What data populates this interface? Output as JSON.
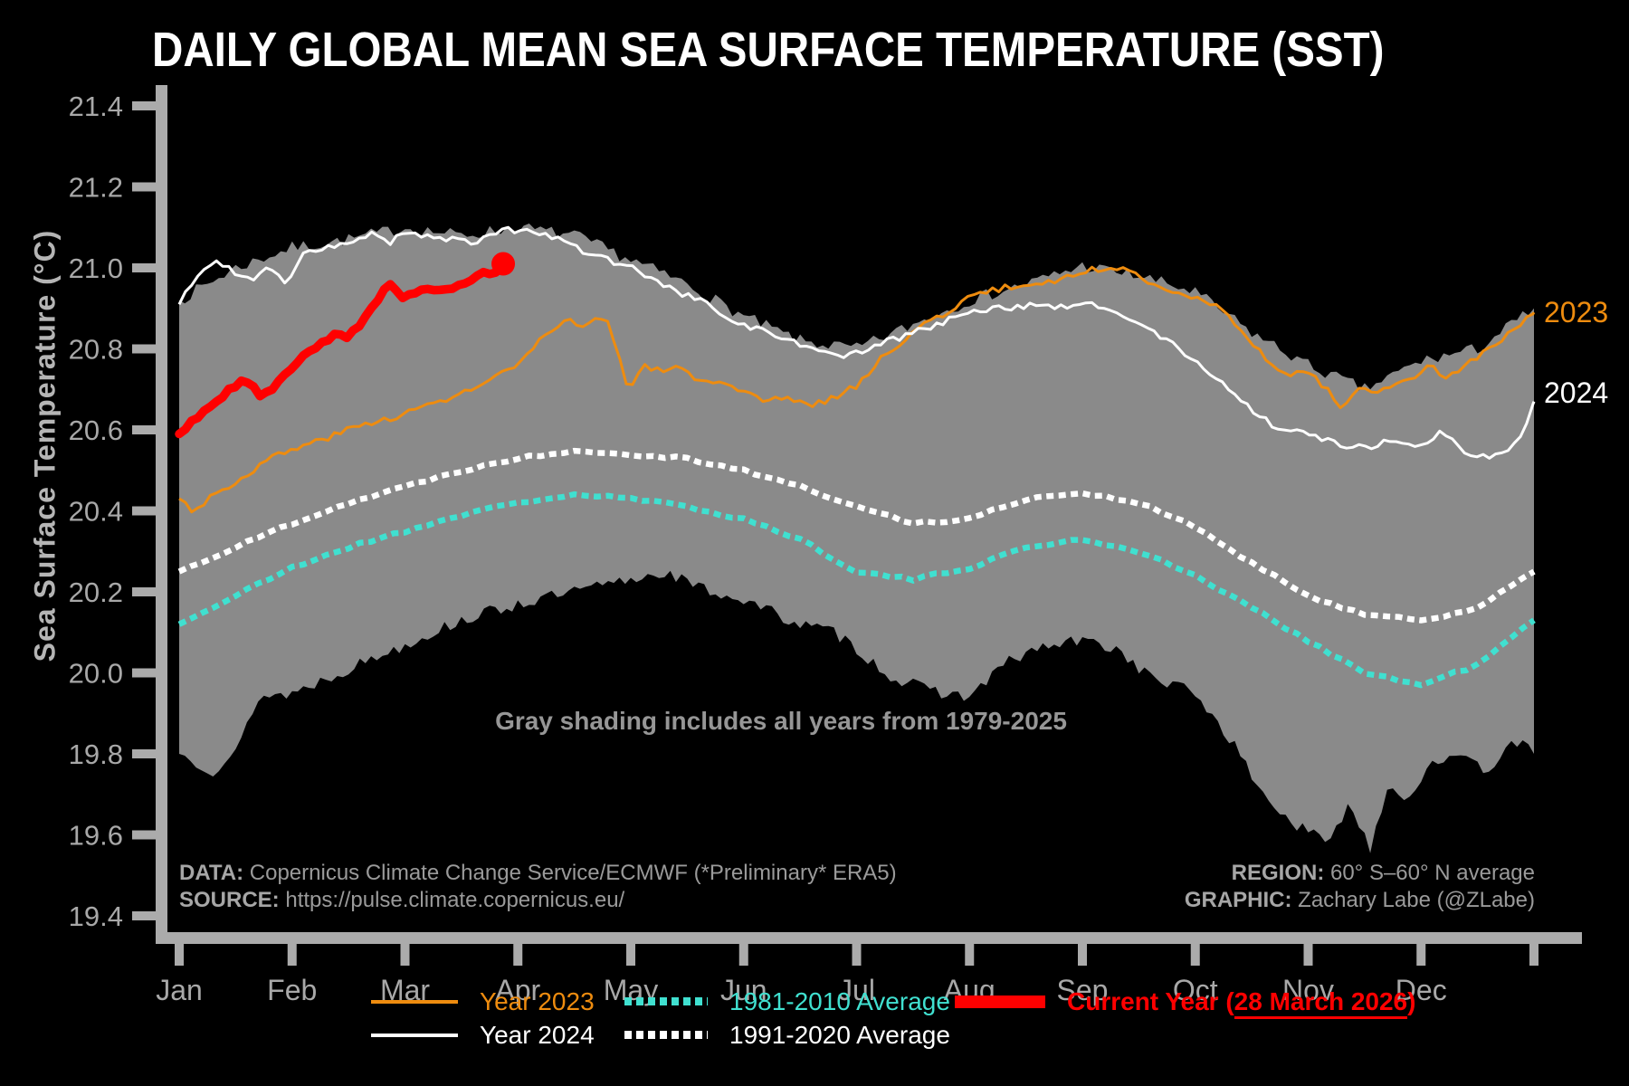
{
  "title": "DAILY GLOBAL MEAN SEA SURFACE TEMPERATURE (SST)",
  "annotation": "Gray shading includes all years from 1979-2025",
  "edge_labels": {
    "y2023": "2023",
    "y2024": "2024"
  },
  "credits": {
    "data_label": "DATA:",
    "data_value": "Copernicus Climate Change Service/ECMWF (*Preliminary* ERA5)",
    "source_label": "SOURCE:",
    "source_value": "https://pulse.climate.copernicus.eu/",
    "region_label": "REGION:",
    "region_value": "60° S–60° N average",
    "graphic_label": "GRAPHIC:",
    "graphic_value": "Zachary Labe (@ZLabe)"
  },
  "legend": {
    "year2023": "Year 2023",
    "year2024": "Year 2024",
    "avg1981": "1981-2010 Average",
    "avg1991": "1991-2020 Average",
    "current_prefix": "Current Year (",
    "current_underline": "28 March 2026",
    "current_suffix": ")"
  },
  "colors": {
    "background": "#000000",
    "band_gray": "#8a8a8a",
    "orange": "#EE8C0F",
    "teal": "#40E0D0",
    "red": "#FF0000",
    "white": "#FFFFFF",
    "axis_gray": "#ABABAB",
    "annotation_gray": "#969696",
    "text_gray": "#9A9A9A"
  },
  "chart_data": {
    "type": "line",
    "ylabel": "Sea Surface Temperature (°C)",
    "ylim": [
      19.4,
      21.4
    ],
    "y_ticks": [
      "21.4",
      "21.2",
      "21.0",
      "20.8",
      "20.6",
      "20.4",
      "20.2",
      "20.0",
      "19.8",
      "19.6",
      "19.4"
    ],
    "x_unit": "months 0=Jan1 .. 12=Dec31",
    "months": [
      "Jan",
      "Feb",
      "Mar",
      "Apr",
      "May",
      "Jun",
      "Jul",
      "Aug",
      "Sep",
      "Oct",
      "Nov",
      "Dec"
    ],
    "band": {
      "label": "All years 1979-2025 envelope (gray shading)",
      "upper": {
        "step": 0.5,
        "values": [
          20.92,
          21.0,
          21.05,
          21.07,
          21.1,
          21.08,
          21.1,
          21.08,
          21.02,
          20.96,
          20.88,
          20.82,
          20.8,
          20.86,
          20.92,
          20.96,
          21.005,
          20.98,
          20.94,
          20.84,
          20.76,
          20.7,
          20.77,
          20.8,
          20.9
        ]
      },
      "lower": {
        "points": [
          [
            0,
            19.8
          ],
          [
            0.3,
            19.76
          ],
          [
            0.5,
            19.8
          ],
          [
            0.7,
            19.94
          ],
          [
            1,
            19.95
          ],
          [
            1.5,
            20.01
          ],
          [
            2,
            20.07
          ],
          [
            2.5,
            20.13
          ],
          [
            3,
            20.17
          ],
          [
            3.5,
            20.2
          ],
          [
            4,
            20.23
          ],
          [
            4.3,
            20.25
          ],
          [
            4.6,
            20.21
          ],
          [
            5,
            20.18
          ],
          [
            5.5,
            20.12
          ],
          [
            5.8,
            20.1
          ],
          [
            6,
            20.06
          ],
          [
            6.3,
            19.99
          ],
          [
            6.6,
            19.96
          ],
          [
            7,
            19.94
          ],
          [
            7.3,
            20.02
          ],
          [
            7.6,
            20.06
          ],
          [
            8,
            20.08
          ],
          [
            8.3,
            20.06
          ],
          [
            8.6,
            19.99
          ],
          [
            9,
            19.95
          ],
          [
            9.3,
            19.84
          ],
          [
            9.6,
            19.7
          ],
          [
            9.9,
            19.62
          ],
          [
            10.2,
            19.58
          ],
          [
            10.35,
            19.68
          ],
          [
            10.55,
            19.57
          ],
          [
            10.7,
            19.72
          ],
          [
            10.9,
            19.69
          ],
          [
            11.1,
            19.79
          ],
          [
            11.4,
            19.78
          ],
          [
            11.6,
            19.76
          ],
          [
            11.8,
            19.84
          ],
          [
            12,
            19.8
          ]
        ]
      }
    },
    "series": [
      {
        "id": "avg-1981-2010",
        "name": "1981-2010 Average",
        "group": "line-1981-2010-avg",
        "color_key": "teal",
        "width": 6.5,
        "dash": "8 5.5",
        "jitter": 0.004,
        "seed": 21,
        "step": 0.5,
        "values": [
          20.12,
          20.19,
          20.26,
          20.31,
          20.35,
          20.39,
          20.42,
          20.44,
          20.43,
          20.41,
          20.38,
          20.33,
          20.25,
          20.23,
          20.26,
          20.31,
          20.33,
          20.3,
          20.24,
          20.16,
          20.08,
          20.0,
          19.97,
          20.02,
          20.13
        ]
      },
      {
        "id": "avg-1991-2020",
        "name": "1991-2020 Average",
        "group": "line-1991-2020-avg",
        "color_key": "white",
        "width": 6.5,
        "dash": "8 5.5",
        "jitter": 0.004,
        "seed": 22,
        "step": 0.5,
        "values": [
          20.25,
          20.31,
          20.37,
          20.42,
          20.46,
          20.5,
          20.53,
          20.55,
          20.54,
          20.53,
          20.5,
          20.46,
          20.41,
          20.37,
          20.38,
          20.43,
          20.445,
          20.42,
          20.36,
          20.27,
          20.19,
          20.145,
          20.13,
          20.16,
          20.25
        ]
      },
      {
        "id": "year-2023",
        "name": "Year 2023",
        "group": "line-2023",
        "color_key": "orange",
        "width": 3,
        "jitter": 0.008,
        "seed": 3,
        "points": [
          [
            0,
            20.43
          ],
          [
            0.13,
            20.4
          ],
          [
            0.3,
            20.44
          ],
          [
            0.5,
            20.47
          ],
          [
            0.8,
            20.53
          ],
          [
            1,
            20.55
          ],
          [
            1.3,
            20.58
          ],
          [
            1.6,
            20.61
          ],
          [
            2,
            20.64
          ],
          [
            2.3,
            20.67
          ],
          [
            2.6,
            20.7
          ],
          [
            3,
            20.76
          ],
          [
            3.2,
            20.82
          ],
          [
            3.45,
            20.87
          ],
          [
            3.6,
            20.86
          ],
          [
            3.78,
            20.88
          ],
          [
            3.9,
            20.78
          ],
          [
            3.98,
            20.69
          ],
          [
            4.1,
            20.76
          ],
          [
            4.3,
            20.74
          ],
          [
            4.45,
            20.76
          ],
          [
            4.6,
            20.72
          ],
          [
            4.8,
            20.71
          ],
          [
            5,
            20.69
          ],
          [
            5.2,
            20.67
          ],
          [
            5.4,
            20.68
          ],
          [
            5.6,
            20.66
          ],
          [
            5.8,
            20.68
          ],
          [
            6,
            20.71
          ],
          [
            6.2,
            20.77
          ],
          [
            6.4,
            20.82
          ],
          [
            6.6,
            20.86
          ],
          [
            6.8,
            20.89
          ],
          [
            7,
            20.93
          ],
          [
            7.3,
            20.95
          ],
          [
            7.6,
            20.96
          ],
          [
            7.9,
            20.98
          ],
          [
            8.1,
            20.995
          ],
          [
            8.27,
            21.005
          ],
          [
            8.45,
            20.985
          ],
          [
            8.65,
            20.96
          ],
          [
            8.85,
            20.94
          ],
          [
            9,
            20.93
          ],
          [
            9.2,
            20.9
          ],
          [
            9.4,
            20.85
          ],
          [
            9.55,
            20.8
          ],
          [
            9.7,
            20.76
          ],
          [
            9.8,
            20.73
          ],
          [
            9.95,
            20.75
          ],
          [
            10.1,
            20.72
          ],
          [
            10.28,
            20.66
          ],
          [
            10.45,
            20.7
          ],
          [
            10.6,
            20.69
          ],
          [
            10.8,
            20.71
          ],
          [
            11,
            20.74
          ],
          [
            11.1,
            20.76
          ],
          [
            11.2,
            20.73
          ],
          [
            11.35,
            20.75
          ],
          [
            11.5,
            20.78
          ],
          [
            11.7,
            20.82
          ],
          [
            11.85,
            20.85
          ],
          [
            12,
            20.89
          ]
        ]
      },
      {
        "id": "year-2024",
        "name": "Year 2024",
        "group": "line-2024",
        "color_key": "white",
        "width": 3,
        "jitter": 0.008,
        "seed": 4,
        "points": [
          [
            0,
            20.91
          ],
          [
            0.2,
            21.0
          ],
          [
            0.35,
            21.02
          ],
          [
            0.5,
            20.98
          ],
          [
            0.65,
            20.97
          ],
          [
            0.8,
            21.0
          ],
          [
            0.95,
            20.96
          ],
          [
            1.1,
            21.03
          ],
          [
            1.3,
            21.05
          ],
          [
            1.5,
            21.06
          ],
          [
            1.7,
            21.09
          ],
          [
            1.85,
            21.06
          ],
          [
            2,
            21.09
          ],
          [
            2.2,
            21.08
          ],
          [
            2.4,
            21.07
          ],
          [
            2.6,
            21.06
          ],
          [
            2.8,
            21.09
          ],
          [
            3,
            21.095
          ],
          [
            3.2,
            21.08
          ],
          [
            3.4,
            21.07
          ],
          [
            3.6,
            21.04
          ],
          [
            3.8,
            21.02
          ],
          [
            4,
            21.0
          ],
          [
            4.2,
            20.97
          ],
          [
            4.4,
            20.94
          ],
          [
            4.6,
            20.92
          ],
          [
            4.8,
            20.89
          ],
          [
            5,
            20.86
          ],
          [
            5.2,
            20.84
          ],
          [
            5.4,
            20.82
          ],
          [
            5.6,
            20.8
          ],
          [
            5.8,
            20.78
          ],
          [
            6,
            20.79
          ],
          [
            6.2,
            20.81
          ],
          [
            6.4,
            20.83
          ],
          [
            6.6,
            20.85
          ],
          [
            6.8,
            20.87
          ],
          [
            7,
            20.89
          ],
          [
            7.3,
            20.9
          ],
          [
            7.6,
            20.91
          ],
          [
            7.9,
            20.9
          ],
          [
            8.05,
            20.91
          ],
          [
            8.2,
            20.9
          ],
          [
            8.45,
            20.87
          ],
          [
            8.7,
            20.83
          ],
          [
            9,
            20.77
          ],
          [
            9.25,
            20.71
          ],
          [
            9.54,
            20.64
          ],
          [
            9.7,
            20.61
          ],
          [
            9.9,
            20.6
          ],
          [
            10.1,
            20.58
          ],
          [
            10.25,
            20.57
          ],
          [
            10.4,
            20.555
          ],
          [
            10.55,
            20.56
          ],
          [
            10.7,
            20.57
          ],
          [
            10.85,
            20.56
          ],
          [
            11,
            20.555
          ],
          [
            11.1,
            20.57
          ],
          [
            11.2,
            20.6
          ],
          [
            11.32,
            20.555
          ],
          [
            11.45,
            20.53
          ],
          [
            11.6,
            20.535
          ],
          [
            11.75,
            20.54
          ],
          [
            11.85,
            20.57
          ],
          [
            11.95,
            20.63
          ],
          [
            12,
            20.67
          ]
        ]
      },
      {
        "id": "current-year",
        "name": "Current Year (28 March 2026)",
        "group": "line-current-year",
        "color_key": "red",
        "width": 9.5,
        "jitter": 0.005,
        "seed": 9,
        "end_dot": true,
        "end_dot_r": 13,
        "points": [
          [
            0,
            20.59
          ],
          [
            0.15,
            20.63
          ],
          [
            0.3,
            20.66
          ],
          [
            0.45,
            20.7
          ],
          [
            0.55,
            20.72
          ],
          [
            0.65,
            20.71
          ],
          [
            0.73,
            20.68
          ],
          [
            0.82,
            20.7
          ],
          [
            0.95,
            20.74
          ],
          [
            1.1,
            20.78
          ],
          [
            1.25,
            20.81
          ],
          [
            1.4,
            20.84
          ],
          [
            1.5,
            20.83
          ],
          [
            1.6,
            20.86
          ],
          [
            1.7,
            20.9
          ],
          [
            1.8,
            20.94
          ],
          [
            1.88,
            20.96
          ],
          [
            1.98,
            20.93
          ],
          [
            2.1,
            20.94
          ],
          [
            2.2,
            20.95
          ],
          [
            2.3,
            20.94
          ],
          [
            2.4,
            20.95
          ],
          [
            2.5,
            20.96
          ],
          [
            2.6,
            20.97
          ],
          [
            2.7,
            20.99
          ],
          [
            2.78,
            20.98
          ],
          [
            2.87,
            21.01
          ]
        ]
      }
    ]
  }
}
